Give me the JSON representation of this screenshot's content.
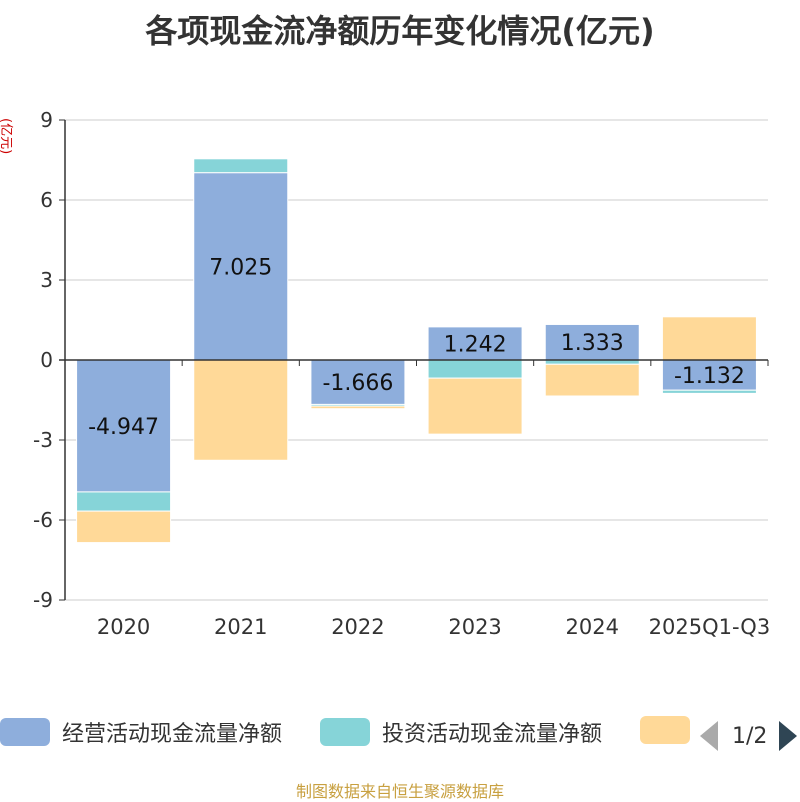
{
  "chart_data": {
    "type": "bar",
    "stacked": true,
    "title": "各项现金流净额历年变化情况(亿元)",
    "ylabel": "(亿元)",
    "ylim": [
      -9,
      9
    ],
    "yticks": [
      9,
      6,
      3,
      0,
      -3,
      -6,
      -9
    ],
    "categories": [
      "2020",
      "2021",
      "2022",
      "2023",
      "2024",
      "2025Q1-Q3"
    ],
    "series": [
      {
        "name": "经营活动现金流量净额",
        "color": "#8eaedc",
        "values": [
          -4.947,
          7.025,
          -1.666,
          1.242,
          1.333,
          -1.132
        ],
        "labels": [
          "-4.947",
          "7.025",
          "-1.666",
          "1.242",
          "1.333",
          "-1.132"
        ]
      },
      {
        "name": "投资活动现金流量净额",
        "color": "#86d4d8",
        "values": [
          -0.72,
          0.52,
          -0.06,
          -0.68,
          -0.16,
          -0.12
        ]
      },
      {
        "name": "",
        "color": "#ffd998",
        "values": [
          -1.18,
          -3.76,
          -0.1,
          -2.1,
          -1.19,
          1.62
        ]
      }
    ]
  },
  "legend": {
    "items": [
      {
        "label": "经营活动现金流量净额",
        "color": "#8eaedc"
      },
      {
        "label": "投资活动现金流量净额",
        "color": "#86d4d8"
      },
      {
        "label": "",
        "color": "#ffd998"
      }
    ],
    "page": "1/2"
  },
  "source": "制图数据来自恒生聚源数据库"
}
